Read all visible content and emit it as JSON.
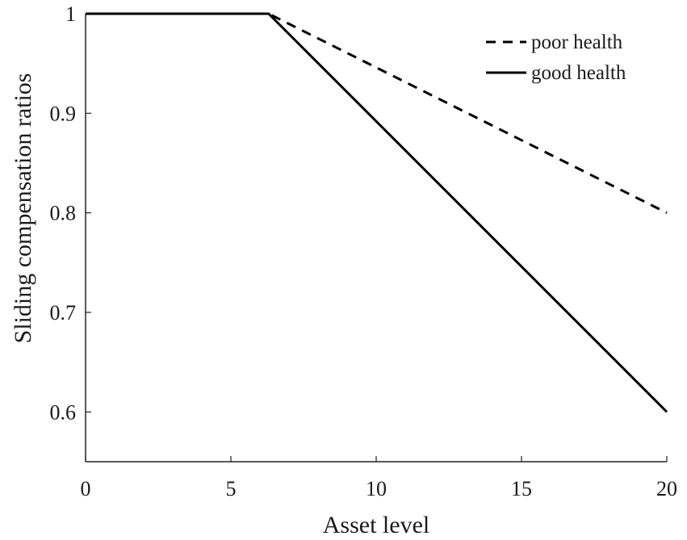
{
  "chart_data": {
    "type": "line",
    "title": "",
    "xlabel": "Asset level",
    "ylabel": "Sliding compensation ratios",
    "xlim": [
      0,
      20
    ],
    "ylim": [
      0.55,
      1
    ],
    "x_ticks": [
      "0",
      "5",
      "10",
      "15",
      "20"
    ],
    "y_ticks": [
      "0.6",
      "0.7",
      "0.8",
      "0.9",
      "1"
    ],
    "x_tick_values": [
      0,
      5,
      10,
      15,
      20
    ],
    "y_tick_values": [
      0.6,
      0.7,
      0.8,
      0.9,
      1
    ],
    "grid": false,
    "legend_position": "top-right",
    "series": [
      {
        "name": "poor health",
        "style": "dashed",
        "color": "#000000",
        "x": [
          0,
          6.3,
          20
        ],
        "y": [
          1,
          1,
          0.8
        ]
      },
      {
        "name": "good health",
        "style": "solid",
        "color": "#000000",
        "x": [
          0,
          6.3,
          20
        ],
        "y": [
          1,
          1,
          0.6
        ]
      }
    ]
  }
}
